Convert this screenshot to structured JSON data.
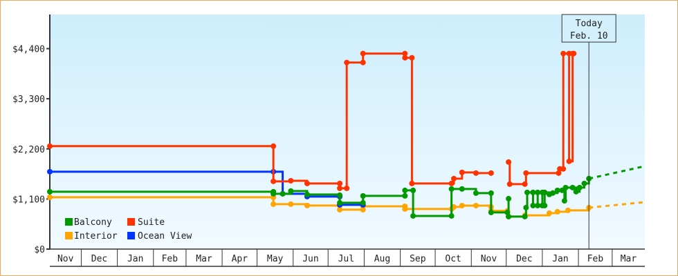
{
  "chart_data": {
    "type": "line",
    "step": true,
    "title": "",
    "xlabel": "",
    "ylabel": "",
    "ylim": [
      0,
      5150
    ],
    "xlim": [
      "2022-11-04",
      "2024-03-29"
    ],
    "grid": false,
    "legend_position": "bottom-left",
    "y_ticks": [
      {
        "value": 0,
        "label": "$0"
      },
      {
        "value": 1100,
        "label": "$1,100"
      },
      {
        "value": 2200,
        "label": "$2,200"
      },
      {
        "value": 3300,
        "label": "$3,300"
      },
      {
        "value": 4400,
        "label": "$4,400"
      }
    ],
    "x_ticks": [
      {
        "label": "Nov",
        "start": "2022-11-04"
      },
      {
        "label": "Dec",
        "start": "2022-12-01"
      },
      {
        "label": "Jan",
        "start": "2023-01-01"
      },
      {
        "label": "Feb",
        "start": "2023-02-01"
      },
      {
        "label": "Mar",
        "start": "2023-03-01"
      },
      {
        "label": "Apr",
        "start": "2023-04-01"
      },
      {
        "label": "May",
        "start": "2023-05-01"
      },
      {
        "label": "Jun",
        "start": "2023-06-01"
      },
      {
        "label": "Jul",
        "start": "2023-07-01"
      },
      {
        "label": "Aug",
        "start": "2023-08-01"
      },
      {
        "label": "Sep",
        "start": "2023-09-01"
      },
      {
        "label": "Oct",
        "start": "2023-10-01"
      },
      {
        "label": "Nov",
        "start": "2023-11-01"
      },
      {
        "label": "Dec",
        "start": "2023-12-01"
      },
      {
        "label": "Jan",
        "start": "2024-01-01"
      },
      {
        "label": "Feb",
        "start": "2024-02-01"
      },
      {
        "label": "Mar",
        "start": "2024-03-01"
      }
    ],
    "today": {
      "line1": "Today",
      "line2": "Feb. 10",
      "date": "2024-02-10"
    },
    "series": [
      {
        "name": "Balcony",
        "color": "#009900",
        "points": [
          [
            "2022-11-04",
            1259
          ],
          [
            "2023-05-15",
            1259
          ],
          [
            "2023-05-15",
            1214
          ],
          [
            "2023-05-23",
            1214
          ],
          [
            "2023-05-30",
            1274
          ],
          [
            "2023-06-13",
            1198
          ],
          [
            "2023-07-11",
            1183
          ],
          [
            "2023-07-11",
            1016
          ],
          [
            "2023-07-31",
            1016
          ],
          [
            "2023-07-31",
            1168
          ],
          [
            "2023-09-05",
            1168
          ],
          [
            "2023-09-05",
            1289
          ],
          [
            "2023-09-12",
            1289
          ],
          [
            "2023-09-12",
            728
          ],
          [
            "2023-10-15",
            728
          ],
          [
            "2023-10-15",
            1320
          ],
          [
            "2023-10-24",
            1320
          ],
          [
            "2023-11-05",
            1229
          ],
          [
            "2023-11-18",
            1229
          ],
          [
            "2023-11-18",
            804
          ],
          [
            "2023-12-02",
            804
          ],
          [
            "2023-12-03",
            1107
          ],
          [
            "2023-12-03",
            713
          ],
          [
            "2023-12-17",
            713
          ],
          [
            "2023-12-18",
            910
          ],
          [
            "2023-12-19",
            1244
          ],
          [
            "2023-12-24",
            1244
          ],
          [
            "2023-12-24",
            955
          ],
          [
            "2023-12-28",
            955
          ],
          [
            "2023-12-28",
            1244
          ],
          [
            "2024-01-01",
            1244
          ],
          [
            "2024-01-01",
            955
          ],
          [
            "2024-01-03",
            955
          ],
          [
            "2024-01-03",
            1244
          ],
          [
            "2024-01-07",
            1200
          ],
          [
            "2024-01-10",
            1230
          ],
          [
            "2024-01-14",
            1290
          ],
          [
            "2024-01-18",
            1290
          ],
          [
            "2024-01-20",
            1060
          ],
          [
            "2024-01-21",
            1350
          ],
          [
            "2024-01-27",
            1350
          ],
          [
            "2024-01-30",
            1260
          ],
          [
            "2024-02-02",
            1350
          ],
          [
            "2024-02-06",
            1440
          ],
          [
            "2024-02-10",
            1547
          ]
        ],
        "projection": [
          [
            "2024-02-10",
            1547
          ],
          [
            "2024-03-29",
            1820
          ]
        ]
      },
      {
        "name": "Suite",
        "color": "#ff3300",
        "points": [
          [
            "2022-11-04",
            2260
          ],
          [
            "2023-05-15",
            2260
          ],
          [
            "2023-05-15",
            1487
          ],
          [
            "2023-05-30",
            1500
          ],
          [
            "2023-06-13",
            1441
          ],
          [
            "2023-07-11",
            1441
          ],
          [
            "2023-07-11",
            1335
          ],
          [
            "2023-07-17",
            1335
          ],
          [
            "2023-07-17",
            4096
          ],
          [
            "2023-07-31",
            4096
          ],
          [
            "2023-07-31",
            4293
          ],
          [
            "2023-09-05",
            4293
          ],
          [
            "2023-09-05",
            4200
          ],
          [
            "2023-09-11",
            4200
          ],
          [
            "2023-09-11",
            1441
          ],
          [
            "2023-10-15",
            1441
          ],
          [
            "2023-10-17",
            1547
          ],
          [
            "2023-10-24",
            1684
          ],
          [
            "2023-11-05",
            1669
          ],
          [
            "2023-11-18",
            1669
          ],
          null,
          [
            "2023-12-03",
            1911
          ],
          [
            "2023-12-04",
            1426
          ],
          [
            "2023-12-17",
            1426
          ],
          [
            "2023-12-18",
            1669
          ],
          [
            "2024-01-15",
            1669
          ],
          [
            "2024-01-16",
            1760
          ],
          [
            "2024-01-19",
            1760
          ],
          [
            "2024-01-19",
            4293
          ],
          [
            "2024-01-24",
            4293
          ],
          [
            "2024-01-24",
            1927
          ],
          [
            "2024-01-27",
            4293
          ],
          [
            "2024-01-28",
            4293
          ]
        ]
      },
      {
        "name": "Interior",
        "color": "#ffa500",
        "points": [
          [
            "2022-11-04",
            1138
          ],
          [
            "2023-05-15",
            1138
          ],
          [
            "2023-05-15",
            986
          ],
          [
            "2023-05-30",
            986
          ],
          [
            "2023-06-13",
            956
          ],
          [
            "2023-07-11",
            956
          ],
          [
            "2023-07-11",
            865
          ],
          [
            "2023-07-31",
            865
          ],
          [
            "2023-07-31",
            940
          ],
          [
            "2023-09-05",
            940
          ],
          [
            "2023-09-05",
            880
          ],
          [
            "2023-10-15",
            880
          ],
          [
            "2023-10-17",
            925
          ],
          [
            "2023-10-24",
            955
          ],
          [
            "2023-11-05",
            955
          ],
          [
            "2023-11-18",
            925
          ],
          [
            "2023-11-18",
            840
          ],
          [
            "2023-12-02",
            840
          ],
          [
            "2023-12-03",
            713
          ],
          [
            "2023-12-17",
            740
          ],
          [
            "2024-01-07",
            790
          ],
          [
            "2024-01-14",
            820
          ],
          [
            "2024-01-23",
            850
          ],
          [
            "2024-02-10",
            910
          ]
        ],
        "projection": [
          [
            "2024-02-10",
            910
          ],
          [
            "2024-03-29",
            1031
          ]
        ]
      },
      {
        "name": "Ocean View",
        "color": "#0033ff",
        "points": [
          [
            "2022-11-04",
            1699
          ],
          [
            "2023-05-15",
            1699
          ],
          [
            "2023-05-23",
            1214
          ],
          [
            "2023-06-13",
            1153
          ],
          [
            "2023-07-11",
            1153
          ],
          [
            "2023-07-11",
            971
          ],
          [
            "2023-07-31",
            971
          ]
        ]
      }
    ]
  }
}
